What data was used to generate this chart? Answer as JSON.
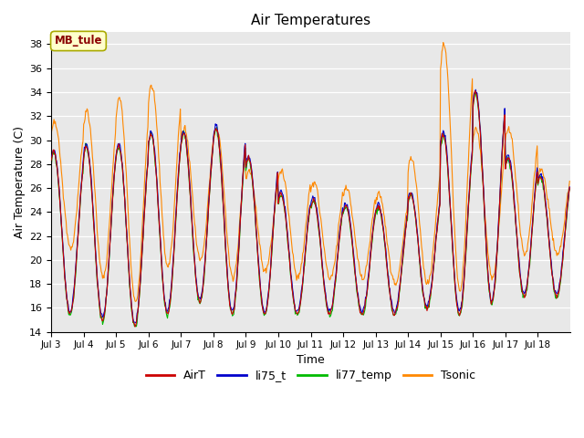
{
  "title": "Air Temperatures",
  "xlabel": "Time",
  "ylabel": "Air Temperature (C)",
  "ylim": [
    14,
    39
  ],
  "yticks": [
    14,
    16,
    18,
    20,
    22,
    24,
    26,
    28,
    30,
    32,
    34,
    36,
    38
  ],
  "annotation_text": "MB_tule",
  "annotation_color": "#8B0000",
  "annotation_bg": "#FFFFCC",
  "annotation_edge": "#AAAA00",
  "bg_color": "#E8E8E8",
  "line_colors": {
    "AirT": "#CC0000",
    "li75_t": "#0000CC",
    "li77_temp": "#00BB00",
    "Tsonic": "#FF8800"
  },
  "legend_labels": [
    "AirT",
    "li75_t",
    "li77_temp",
    "Tsonic"
  ],
  "xtick_labels": [
    "Jul 3",
    "Jul 4",
    "Jul 5",
    "Jul 6",
    "Jul 7",
    "Jul 8",
    "Jul 9",
    "Jul 10",
    "Jul 11",
    "Jul 12",
    "Jul 13",
    "Jul 14",
    "Jul 15",
    "Jul 16",
    "Jul 17",
    "Jul 18"
  ],
  "n_days": 16,
  "pts_per_day": 48
}
